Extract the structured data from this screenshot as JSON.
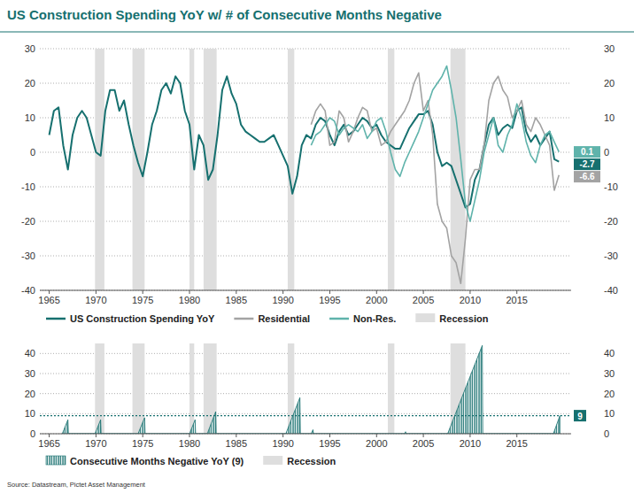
{
  "chart_data": [
    {
      "type": "line",
      "title": "US Construction Spending YoY w/ # of Consecutive Months Negative",
      "source": "Source: Datastream, Pictet Asset Management",
      "x": [
        1965,
        1965.5,
        1966,
        1966.5,
        1967,
        1967.5,
        1968,
        1968.5,
        1969,
        1969.5,
        1970,
        1970.5,
        1971,
        1971.5,
        1972,
        1972.5,
        1973,
        1973.5,
        1974,
        1974.5,
        1975,
        1975.5,
        1976,
        1976.5,
        1977,
        1977.5,
        1978,
        1978.5,
        1979,
        1979.5,
        1980,
        1980.5,
        1981,
        1981.5,
        1982,
        1982.5,
        1983,
        1983.5,
        1984,
        1984.5,
        1985,
        1985.5,
        1986,
        1986.5,
        1987,
        1987.5,
        1988,
        1988.5,
        1989,
        1989.5,
        1990,
        1990.5,
        1991,
        1991.5,
        1992,
        1992.5,
        1993,
        1993.5,
        1994,
        1994.5,
        1995,
        1995.5,
        1996,
        1996.5,
        1997,
        1997.5,
        1998,
        1998.5,
        1999,
        1999.5,
        2000,
        2000.5,
        2001,
        2001.5,
        2002,
        2002.5,
        2003,
        2003.5,
        2004,
        2004.5,
        2005,
        2005.5,
        2006,
        2006.5,
        2007,
        2007.5,
        2008,
        2008.5,
        2009,
        2009.5,
        2010,
        2010.5,
        2011,
        2011.5,
        2012,
        2012.5,
        2013,
        2013.5,
        2014,
        2014.5,
        2015,
        2015.5,
        2016,
        2016.5,
        2017,
        2017.5,
        2018,
        2018.5,
        2019,
        2019.5
      ],
      "series": [
        {
          "name": "US Construction Spending YoY",
          "color": "#16706f",
          "values": [
            5,
            12,
            13,
            2,
            -5,
            5,
            10,
            12,
            10,
            5,
            0,
            -1,
            12,
            18,
            18,
            12,
            15,
            8,
            2,
            -3,
            -7,
            0,
            8,
            12,
            18,
            20,
            17,
            22,
            20,
            12,
            8,
            -5,
            5,
            2,
            -8,
            -5,
            5,
            18,
            22,
            17,
            14,
            8,
            6,
            5,
            4,
            3,
            3,
            4,
            5,
            2,
            -1,
            -4,
            -12,
            -7,
            2,
            5,
            4,
            8,
            10,
            9,
            5,
            2,
            6,
            8,
            5,
            6,
            8,
            10,
            9,
            7,
            8,
            5,
            3,
            2,
            1,
            1,
            4,
            7,
            9,
            11,
            11,
            12,
            8,
            0,
            -4,
            -3,
            -4,
            -8,
            -12,
            -16,
            -15,
            -8,
            -5,
            2,
            8,
            10,
            5,
            7,
            8,
            7,
            12,
            13,
            6,
            3,
            5,
            2,
            4,
            6,
            -2,
            -2.7
          ]
        },
        {
          "name": "Residential",
          "color": "#a3a3a3",
          "values": [
            null,
            null,
            null,
            null,
            null,
            null,
            null,
            null,
            null,
            null,
            null,
            null,
            null,
            null,
            null,
            null,
            null,
            null,
            null,
            null,
            null,
            null,
            null,
            null,
            null,
            null,
            null,
            null,
            null,
            null,
            null,
            null,
            null,
            null,
            null,
            null,
            null,
            null,
            null,
            null,
            null,
            null,
            null,
            null,
            null,
            null,
            null,
            null,
            null,
            null,
            null,
            null,
            null,
            null,
            null,
            null,
            8,
            12,
            14,
            12,
            2,
            3,
            12,
            10,
            3,
            6,
            10,
            13,
            12,
            6,
            7,
            2,
            3,
            6,
            8,
            10,
            12,
            15,
            20,
            23,
            12,
            15,
            5,
            -15,
            -20,
            -22,
            -30,
            -32,
            -38,
            -25,
            -8,
            -5,
            -5,
            2,
            15,
            20,
            22,
            18,
            16,
            10,
            12,
            15,
            8,
            6,
            10,
            8,
            5,
            2,
            -11,
            -6.6
          ]
        },
        {
          "name": "Non-Res.",
          "color": "#5fb3ab",
          "values": [
            null,
            null,
            null,
            null,
            null,
            null,
            null,
            null,
            null,
            null,
            null,
            null,
            null,
            null,
            null,
            null,
            null,
            null,
            null,
            null,
            null,
            null,
            null,
            null,
            null,
            null,
            null,
            null,
            null,
            null,
            null,
            null,
            null,
            null,
            null,
            null,
            null,
            null,
            null,
            null,
            null,
            null,
            null,
            null,
            null,
            null,
            null,
            null,
            null,
            null,
            null,
            null,
            null,
            null,
            null,
            null,
            2,
            5,
            6,
            8,
            10,
            9,
            5,
            7,
            8,
            7,
            6,
            8,
            4,
            6,
            9,
            10,
            6,
            0,
            -5,
            -7,
            -3,
            0,
            3,
            6,
            10,
            14,
            18,
            20,
            22,
            25,
            18,
            10,
            -2,
            -15,
            -20,
            -14,
            -8,
            0,
            5,
            10,
            2,
            0,
            5,
            8,
            14,
            10,
            3,
            -1,
            -3,
            2,
            5,
            6,
            3,
            0.1
          ]
        }
      ],
      "xlim": [
        1964,
        2020.8
      ],
      "xticks": [
        1965,
        1970,
        1975,
        1980,
        1985,
        1990,
        1995,
        2000,
        2005,
        2010,
        2015
      ],
      "ylim": [
        -40,
        30
      ],
      "yticks": [
        -40,
        -30,
        -20,
        -10,
        0,
        10,
        20,
        30
      ],
      "grid": true,
      "recessions": [
        [
          1969.9,
          1970.9
        ],
        [
          1973.9,
          1975.2
        ],
        [
          1980.0,
          1980.5
        ],
        [
          1981.5,
          1982.9
        ],
        [
          1990.5,
          1991.2
        ],
        [
          2001.2,
          2001.9
        ],
        [
          2007.9,
          2009.5
        ]
      ],
      "recession_label": "Recession",
      "annotations": [
        {
          "label": "0.1",
          "value": 0.1,
          "color": "#5fb3ab"
        },
        {
          "label": "-2.7",
          "value": -2.7,
          "color": "#16706f"
        },
        {
          "label": "-6.6",
          "value": -6.6,
          "color": "#a3a3a3"
        }
      ]
    },
    {
      "type": "area",
      "x": [
        1966.4,
        1967.0,
        1967.05,
        1969.9,
        1970.5,
        1970.55,
        1974.5,
        1975.2,
        1975.25,
        1980.0,
        1980.6,
        1980.65,
        1981.9,
        1982.8,
        1982.85,
        1990.3,
        1991.8,
        1991.85,
        1993.0,
        1993.2,
        1993.25,
        2003.0,
        2003.1,
        2003.15,
        2007.6,
        2011.3,
        2011.35,
        2018.9,
        2019.6
      ],
      "series": [
        {
          "name": "Consecutive Months Negative YoY (9)",
          "color": "#16706f",
          "values": [
            0,
            7,
            0,
            0,
            7,
            0,
            0,
            8,
            0,
            0,
            7,
            0,
            0,
            11,
            0,
            0,
            18,
            0,
            0,
            2,
            0,
            0,
            1,
            0,
            0,
            44,
            0,
            0,
            9
          ]
        }
      ],
      "xlim": [
        1964,
        2020.8
      ],
      "xticks": [
        1965,
        1970,
        1975,
        1980,
        1985,
        1990,
        1995,
        2000,
        2005,
        2010,
        2015
      ],
      "ylim": [
        0,
        45
      ],
      "yticks": [
        0,
        10,
        20,
        30,
        40
      ],
      "grid": true,
      "recessions": [
        [
          1969.9,
          1970.9
        ],
        [
          1973.9,
          1975.2
        ],
        [
          1980.0,
          1980.5
        ],
        [
          1981.5,
          1982.9
        ],
        [
          1990.5,
          1991.2
        ],
        [
          2001.2,
          2001.9
        ],
        [
          2007.9,
          2009.5
        ]
      ],
      "recession_label": "Recession",
      "reference_line": {
        "value": 9,
        "label": "9"
      }
    }
  ]
}
